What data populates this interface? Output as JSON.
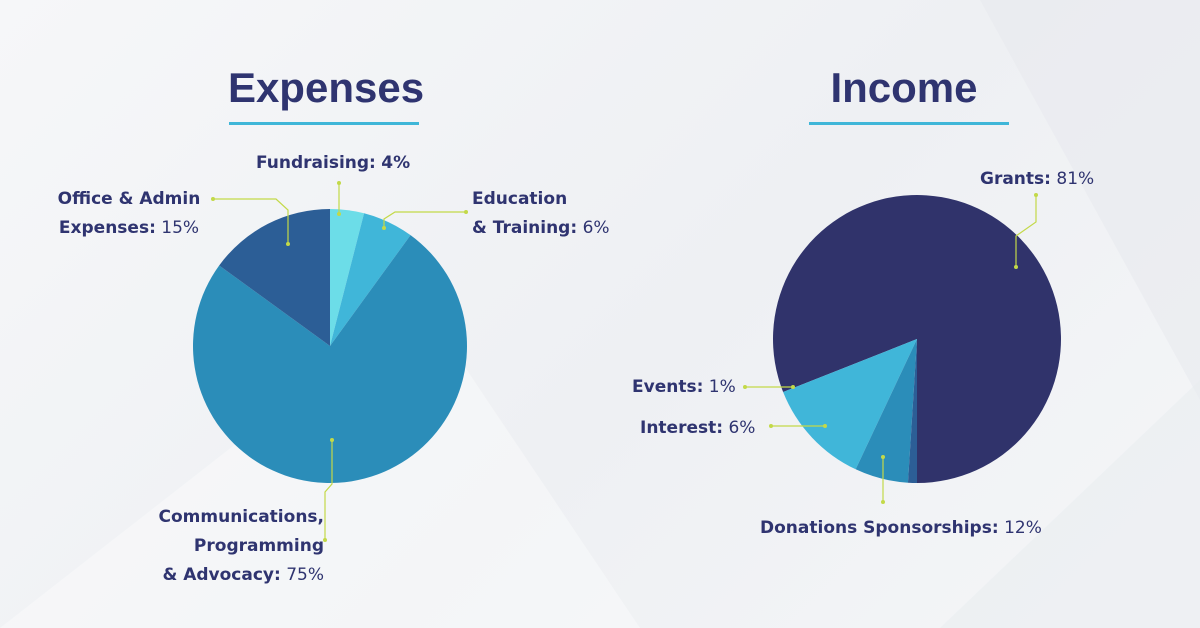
{
  "titles": {
    "expenses": "Expenses",
    "income": "Income"
  },
  "colors": {
    "title": "#2f3470",
    "underline": "#3fb6d8",
    "leader": "#c3d948",
    "label": "#2f3470"
  },
  "chart_data": [
    {
      "type": "pie",
      "title": "Expenses",
      "slices": [
        {
          "label": "Fundraising:",
          "value": 4,
          "display": "4%",
          "color": "#6cdde8"
        },
        {
          "label": "Education & Training:",
          "value": 6,
          "display": "6%",
          "color": "#40b6d9"
        },
        {
          "label": "Communications, Programming & Advocacy:",
          "value": 75,
          "display": "75%",
          "color": "#2b8db9"
        },
        {
          "label": "Office & Admin Expenses:",
          "value": 15,
          "display": "15%",
          "color": "#2c5e96"
        }
      ]
    },
    {
      "type": "pie",
      "title": "Income",
      "slices": [
        {
          "label": "Grants:",
          "value": 81,
          "display": "81%",
          "color": "#30336b"
        },
        {
          "label": "Donations Sponsorships:",
          "value": 12,
          "display": "12%",
          "color": "#40b6d9"
        },
        {
          "label": "Interest:",
          "value": 6,
          "display": "6%",
          "color": "#2b8db9"
        },
        {
          "label": "Events:",
          "value": 1,
          "display": "1%",
          "color": "#2c5e96"
        }
      ]
    }
  ],
  "label_lines": {
    "fundraising": "Fundraising:",
    "fundraising_pct": "4%",
    "education_1": "Education",
    "education_2": "& Training:",
    "education_pct": "6%",
    "office_1": "Office & Admin",
    "office_2": "Expenses:",
    "office_pct": "15%",
    "comms_1": "Communications,",
    "comms_2": "Programming",
    "comms_3": "& Advocacy:",
    "comms_pct": "75%",
    "grants": "Grants:",
    "grants_pct": "81%",
    "donations": "Donations Sponsorships:",
    "donations_pct": "12%",
    "interest": "Interest:",
    "interest_pct": "6%",
    "events": "Events:",
    "events_pct": "1%"
  }
}
